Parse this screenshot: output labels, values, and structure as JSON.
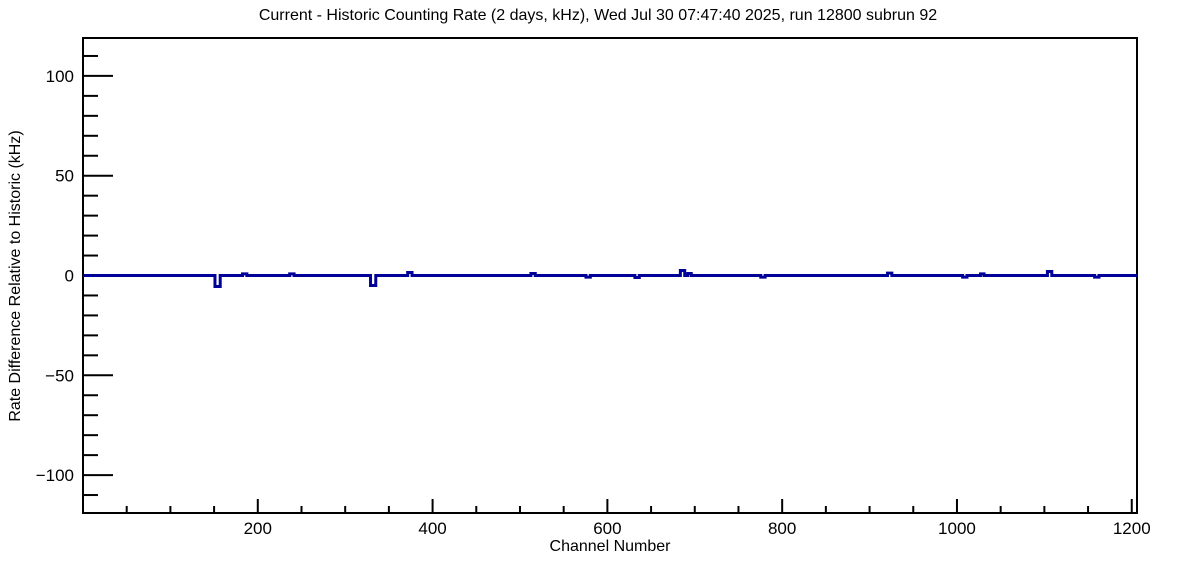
{
  "chart_data": {
    "type": "line",
    "style": "step-histogram",
    "title": "Current - Historic Counting Rate (2 days, kHz), Wed Jul 30 07:47:40 2025, run 12800 subrun 92",
    "xlabel": "Channel Number",
    "ylabel": "Rate Difference Relative to Historic (kHz)",
    "xlim": [
      0,
      1206
    ],
    "ylim": [
      -119,
      119
    ],
    "x_tick_values": [
      200,
      400,
      600,
      800,
      1000,
      1200
    ],
    "x_tick_labels": [
      "200",
      "400",
      "600",
      "800",
      "1000",
      "1200"
    ],
    "x_minor_step": 50,
    "y_tick_values": [
      -100,
      -50,
      0,
      50,
      100
    ],
    "y_tick_labels": [
      "−100",
      "−50",
      "0",
      "50",
      "100"
    ],
    "y_minor_step": 10,
    "grid": false,
    "legend": null,
    "line_color": "#000099",
    "frame_color": "#000000",
    "background_color": "#ffffff",
    "baseline_value": 0,
    "spikes": [
      {
        "channel": 154,
        "value": -5.5,
        "width": 6
      },
      {
        "channel": 185,
        "value": 0.8,
        "width": 5
      },
      {
        "channel": 239,
        "value": 0.8,
        "width": 5
      },
      {
        "channel": 332,
        "value": -5.0,
        "width": 6
      },
      {
        "channel": 374,
        "value": 1.5,
        "width": 5
      },
      {
        "channel": 515,
        "value": 1.0,
        "width": 5
      },
      {
        "channel": 578,
        "value": -0.8,
        "width": 5
      },
      {
        "channel": 634,
        "value": -1.0,
        "width": 5
      },
      {
        "channel": 686,
        "value": 2.5,
        "width": 5
      },
      {
        "channel": 694,
        "value": 1.0,
        "width": 4
      },
      {
        "channel": 778,
        "value": -0.8,
        "width": 5
      },
      {
        "channel": 923,
        "value": 1.2,
        "width": 5
      },
      {
        "channel": 1009,
        "value": -0.8,
        "width": 5
      },
      {
        "channel": 1029,
        "value": 0.8,
        "width": 4
      },
      {
        "channel": 1106,
        "value": 2.0,
        "width": 5
      },
      {
        "channel": 1160,
        "value": -0.8,
        "width": 5
      }
    ]
  }
}
